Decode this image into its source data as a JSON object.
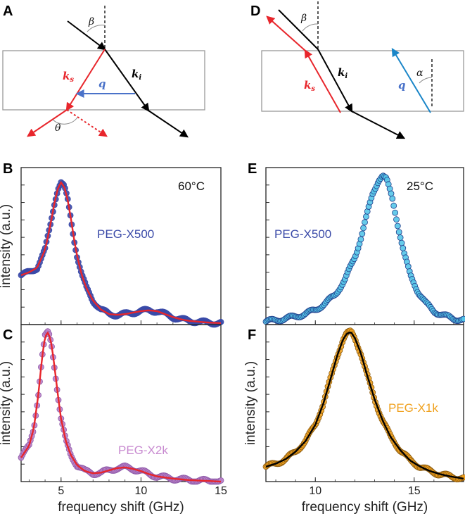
{
  "figure": {
    "panel_letters": [
      "A",
      "B",
      "C",
      "D",
      "E",
      "F"
    ],
    "diagram_A": {
      "angle_incident": "β",
      "angle_scatter": "θ",
      "wave_incident": "k",
      "wave_incident_sub": "i",
      "wave_scattered": "k",
      "wave_scattered_sub": "s",
      "phonon": "q"
    },
    "diagram_D": {
      "angle_incident": "β",
      "angle_phonon": "α",
      "wave_incident": "k",
      "wave_incident_sub": "i",
      "wave_scattered": "k",
      "wave_scattered_sub": "s",
      "phonon": "q"
    },
    "colors": {
      "red": "#e8262c",
      "blue_arrow": "#4a72c9",
      "cyan_arrow": "#1a86c8",
      "navy_marker": "#3a4aa8",
      "cyan_marker": "#55c5e8",
      "pink_marker": "#b97fc8",
      "orange_marker": "#f0a11e",
      "fit_red": "#e8262c",
      "fit_black": "#000000"
    }
  },
  "chart_data": [
    {
      "panel": "B",
      "type": "scatter",
      "series_label": "PEG-X500",
      "temperature": "60°C",
      "ylabel": "intensity (a.u.)",
      "xlabel": "",
      "xlim": [
        2.5,
        15
      ],
      "ylim": [
        0,
        1.05
      ],
      "xticks": [
        5,
        10,
        15
      ],
      "x": [
        2.5,
        3.0,
        3.5,
        4.0,
        4.3,
        4.6,
        4.8,
        5.0,
        5.2,
        5.4,
        5.6,
        5.8,
        6.0,
        6.3,
        6.6,
        7.0,
        7.5,
        8.0,
        8.5,
        9.0,
        9.5,
        10.0,
        10.5,
        11.0,
        11.5,
        12.0,
        12.5,
        13.0,
        13.5,
        14.0,
        14.5,
        15.0
      ],
      "y": [
        0.33,
        0.35,
        0.38,
        0.5,
        0.65,
        0.82,
        0.91,
        0.95,
        0.92,
        0.84,
        0.72,
        0.58,
        0.46,
        0.33,
        0.24,
        0.16,
        0.1,
        0.07,
        0.065,
        0.07,
        0.08,
        0.09,
        0.095,
        0.09,
        0.07,
        0.05,
        0.035,
        0.025,
        0.02,
        0.015,
        0.012,
        0.01
      ],
      "fit": "red"
    },
    {
      "panel": "C",
      "type": "scatter",
      "series_label": "PEG-X2k",
      "temperature": "",
      "ylabel": "intensity (a.u.)",
      "xlabel": "frequency shift (GHz)",
      "xlim": [
        2.5,
        15
      ],
      "ylim": [
        0,
        1.05
      ],
      "xticks": [
        5,
        10,
        15
      ],
      "xticklabels": [
        "5",
        "10",
        "15"
      ],
      "x": [
        2.5,
        3.0,
        3.3,
        3.6,
        3.8,
        4.0,
        4.2,
        4.4,
        4.6,
        4.8,
        5.0,
        5.3,
        5.6,
        6.0,
        6.5,
        7.0,
        7.5,
        8.0,
        8.5,
        9.0,
        9.5,
        10.0,
        10.5,
        11.0,
        12.0,
        13.0,
        14.0,
        15.0
      ],
      "y": [
        0.16,
        0.24,
        0.36,
        0.6,
        0.82,
        0.97,
        1.0,
        0.92,
        0.76,
        0.58,
        0.42,
        0.27,
        0.18,
        0.11,
        0.07,
        0.055,
        0.06,
        0.075,
        0.09,
        0.095,
        0.085,
        0.07,
        0.05,
        0.035,
        0.02,
        0.01,
        0.005,
        0.0
      ],
      "fit": "red"
    },
    {
      "panel": "E",
      "type": "scatter",
      "series_label": "PEG-X500",
      "temperature": "25°C",
      "ylabel": "",
      "xlabel": "",
      "xlim": [
        7.5,
        17.5
      ],
      "ylim": [
        0,
        1.05
      ],
      "xticks": [
        10,
        15
      ],
      "x": [
        7.5,
        8.0,
        8.5,
        9.0,
        9.5,
        10.0,
        10.5,
        11.0,
        11.5,
        12.0,
        12.3,
        12.6,
        12.9,
        13.2,
        13.4,
        13.6,
        13.9,
        14.2,
        14.5,
        14.8,
        15.2,
        15.6,
        16.0,
        16.5,
        17.0,
        17.5
      ],
      "y": [
        0.02,
        0.03,
        0.04,
        0.055,
        0.07,
        0.1,
        0.14,
        0.2,
        0.3,
        0.45,
        0.58,
        0.73,
        0.87,
        0.97,
        1.0,
        0.97,
        0.84,
        0.65,
        0.47,
        0.33,
        0.22,
        0.14,
        0.09,
        0.06,
        0.04,
        0.03
      ]
    },
    {
      "panel": "F",
      "type": "scatter",
      "series_label": "PEG-X1k",
      "temperature": "",
      "ylabel": "intensity (a.u.)",
      "xlabel": "frequency shift (GHz)",
      "xlim": [
        7.5,
        17.5
      ],
      "ylim": [
        0,
        1.05
      ],
      "xticks": [
        10,
        15
      ],
      "xticklabels": [
        "10",
        "15"
      ],
      "x": [
        7.5,
        8.0,
        8.5,
        9.0,
        9.5,
        10.0,
        10.4,
        10.8,
        11.1,
        11.4,
        11.6,
        11.8,
        12.0,
        12.3,
        12.6,
        13.0,
        13.4,
        13.8,
        14.3,
        14.8,
        15.3,
        15.8,
        16.3,
        16.8,
        17.5
      ],
      "y": [
        0.1,
        0.12,
        0.15,
        0.2,
        0.27,
        0.38,
        0.52,
        0.7,
        0.84,
        0.95,
        0.99,
        1.0,
        0.96,
        0.86,
        0.72,
        0.55,
        0.41,
        0.3,
        0.21,
        0.14,
        0.1,
        0.07,
        0.05,
        0.035,
        0.02
      ],
      "fit": "black"
    }
  ]
}
